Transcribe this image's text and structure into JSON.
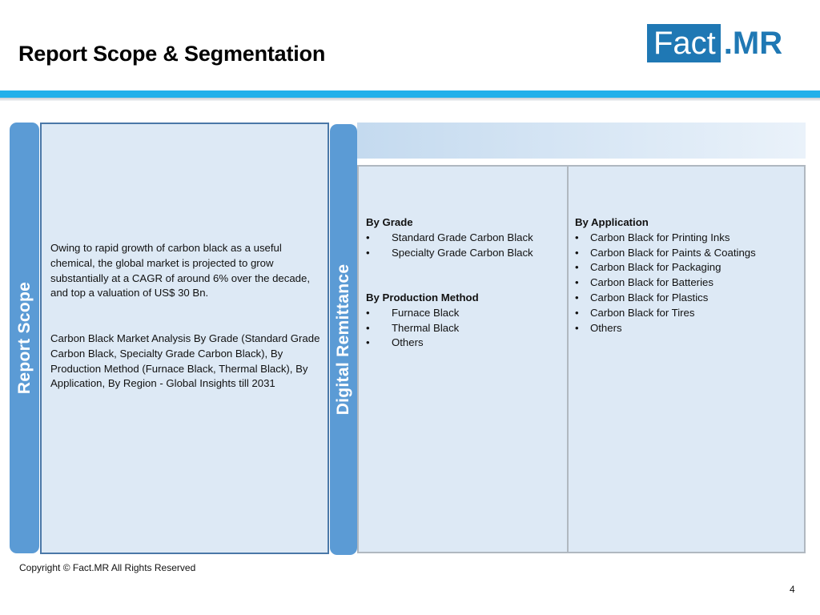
{
  "header": {
    "title": "Report Scope & Segmentation",
    "logo_box_text": "Fact",
    "logo_rest_text": ".MR"
  },
  "scope": {
    "tab_label": "Report Scope",
    "paragraph1": "Owing to rapid growth of carbon black as a useful chemical, the global market is projected to grow substantially at a CAGR of around 6% over the decade, and top a valuation of US$ 30 Bn.",
    "paragraph2": "Carbon Black Market Analysis By Grade (Standard Grade Carbon Black, Specialty Grade Carbon Black), By Production Method (Furnace Black, Thermal Black), By Application, By Region - Global Insights till 2031"
  },
  "segmentation": {
    "tab_label": "Digital Remittance",
    "bullet": "•",
    "grade": {
      "heading": "By Grade",
      "items": [
        "Standard Grade Carbon Black",
        "Specialty Grade Carbon Black"
      ]
    },
    "production": {
      "heading": "By Production Method",
      "items": [
        "Furnace Black",
        "Thermal Black",
        "Others"
      ]
    },
    "application": {
      "heading": "By Application",
      "items": [
        "Carbon Black for Printing Inks",
        "Carbon Black for Paints & Coatings",
        "Carbon Black for Packaging",
        "Carbon Black for Batteries",
        "Carbon Black for Plastics",
        "Carbon Black for Tires",
        "Others"
      ]
    }
  },
  "footer": {
    "copyright": "Copyright © Fact.MR All Rights Reserved",
    "page_number": "4"
  },
  "colors": {
    "accent_blue": "#5b9bd5",
    "rule_cyan": "#22b0ea",
    "logo_blue": "#1f78b4",
    "panel_fill": "#dde9f5"
  }
}
